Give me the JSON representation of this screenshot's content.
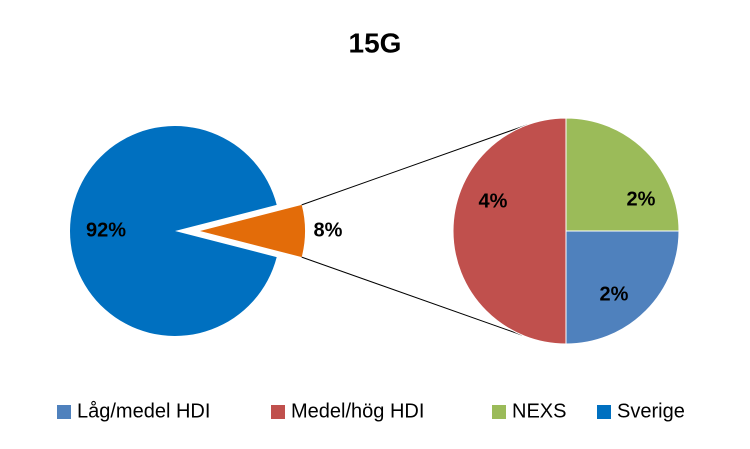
{
  "chart_data": {
    "type": "pie-of-pie",
    "title": "15G",
    "categories": [
      "Låg/medel HDI",
      "Medel/hög HDI",
      "NEXS",
      "Sverige"
    ],
    "values": [
      2,
      4,
      2,
      92
    ],
    "value_labels": [
      "2%",
      "4%",
      "2%",
      "92%"
    ],
    "colors": [
      "#4f81bd",
      "#c0504d",
      "#9bbb59",
      "#0070c0"
    ],
    "other": {
      "value": 8,
      "value_label": "8%",
      "color": "#e36c09"
    },
    "legend": "bottom"
  }
}
